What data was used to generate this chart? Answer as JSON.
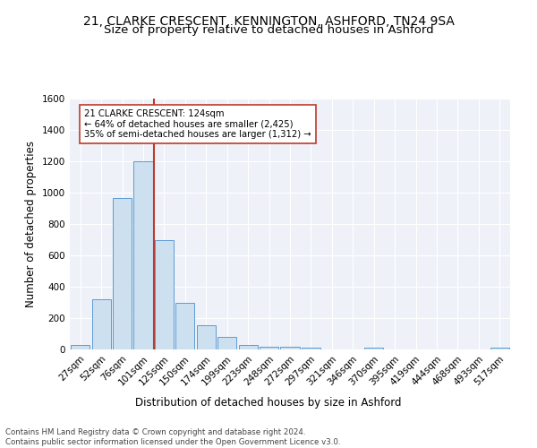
{
  "title": "21, CLARKE CRESCENT, KENNINGTON, ASHFORD, TN24 9SA",
  "subtitle": "Size of property relative to detached houses in Ashford",
  "xlabel": "Distribution of detached houses by size in Ashford",
  "ylabel": "Number of detached properties",
  "bar_labels": [
    "27sqm",
    "52sqm",
    "76sqm",
    "101sqm",
    "125sqm",
    "150sqm",
    "174sqm",
    "199sqm",
    "223sqm",
    "248sqm",
    "272sqm",
    "297sqm",
    "321sqm",
    "346sqm",
    "370sqm",
    "395sqm",
    "419sqm",
    "444sqm",
    "468sqm",
    "493sqm",
    "517sqm"
  ],
  "bar_values": [
    27,
    320,
    965,
    1200,
    695,
    300,
    155,
    80,
    27,
    15,
    15,
    12,
    0,
    0,
    13,
    0,
    0,
    0,
    0,
    0,
    13
  ],
  "bar_color": "#cce0f0",
  "bar_edge_color": "#5b9bd5",
  "vline_color": "#c0392b",
  "annotation_line1": "21 CLARKE CRESCENT: 124sqm",
  "annotation_line2": "← 64% of detached houses are smaller (2,425)",
  "annotation_line3": "35% of semi-detached houses are larger (1,312) →",
  "annotation_box_color": "white",
  "annotation_box_edge_color": "#c0392b",
  "ylim": [
    0,
    1600
  ],
  "yticks": [
    0,
    200,
    400,
    600,
    800,
    1000,
    1200,
    1400,
    1600
  ],
  "footnote": "Contains HM Land Registry data © Crown copyright and database right 2024.\nContains public sector information licensed under the Open Government Licence v3.0.",
  "bg_color": "#eef2f8",
  "title_fontsize": 10,
  "subtitle_fontsize": 9.5,
  "axis_label_fontsize": 8.5,
  "tick_fontsize": 7.5,
  "footnote_fontsize": 6.2
}
